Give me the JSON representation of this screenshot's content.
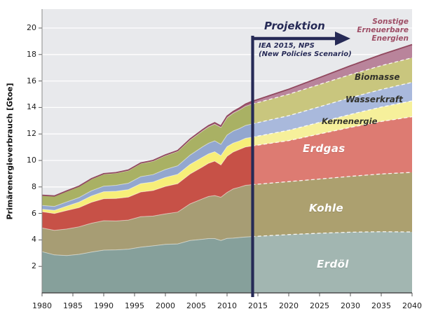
{
  "labels": {
    "y_axis_title": "Primärenergieverbrauch [Gtoe]",
    "projektion": "Projektion",
    "iea_line1": "IEA 2015, NPS",
    "iea_line2": "(New Policies Scenario)",
    "sonstige_l1": "Sonstige",
    "sonstige_l2": "Erneuerbare",
    "sonstige_l3": "Energien",
    "biomasse": "Biomasse",
    "wasserkraft": "Wasserkraft",
    "kernenergie": "Kernenergie",
    "erdgas": "Erdgas",
    "kohle": "Kohle",
    "erdoel": "Erdöl"
  },
  "colors": {
    "plot_bg": "#e8e9ec",
    "gridline": "#ffffff",
    "axis": "#5a5a5a",
    "divider_navy": "#262a56",
    "top_edge": "#91495f",
    "sonstige_label": "#9e4e66"
  },
  "axes": {
    "x_ticks": [
      1980,
      1985,
      1990,
      1995,
      2000,
      2005,
      2010,
      2015,
      2020,
      2025,
      2030,
      2035,
      2040
    ],
    "y_ticks": [
      2,
      4,
      6,
      8,
      10,
      12,
      14,
      16,
      18,
      20
    ]
  },
  "chart_data": {
    "type": "area",
    "stacked": true,
    "title": "",
    "xlabel": "",
    "ylabel": "Primärenergieverbrauch [Gtoe]",
    "unit": "Gtoe",
    "xlim": [
      1980,
      2040
    ],
    "ylim": [
      0,
      21.4
    ],
    "grid": "horizontal-white",
    "projection_start": 2014,
    "projection_note": "IEA 2015, NPS (New Policies Scenario)",
    "x": [
      1980,
      1982,
      1984,
      1986,
      1988,
      1990,
      1992,
      1994,
      1996,
      1998,
      2000,
      2002,
      2004,
      2006,
      2007,
      2008,
      2009,
      2010,
      2011,
      2012,
      2013,
      2014,
      2020,
      2025,
      2030,
      2035,
      2040
    ],
    "series": [
      {
        "name": "Erdöl",
        "color_hist": "#86a09b",
        "color_proj": "#a2b6b1",
        "values": [
          3.11,
          2.87,
          2.82,
          2.91,
          3.08,
          3.23,
          3.25,
          3.3,
          3.45,
          3.55,
          3.66,
          3.7,
          3.95,
          4.05,
          4.1,
          4.1,
          3.96,
          4.11,
          4.13,
          4.18,
          4.22,
          4.25,
          4.4,
          4.5,
          4.58,
          4.62,
          4.6
        ]
      },
      {
        "name": "Kohle",
        "color_hist": "#a79d74",
        "color_proj": "#aca06f",
        "values": [
          1.79,
          1.85,
          2.0,
          2.08,
          2.18,
          2.22,
          2.18,
          2.2,
          2.3,
          2.25,
          2.31,
          2.4,
          2.77,
          3.05,
          3.18,
          3.25,
          3.26,
          3.47,
          3.72,
          3.8,
          3.9,
          3.92,
          4.0,
          4.1,
          4.22,
          4.36,
          4.5
        ]
      },
      {
        "name": "Erdgas",
        "color_hist": "#c75147",
        "color_proj": "#dd7b72",
        "values": [
          1.23,
          1.27,
          1.4,
          1.45,
          1.58,
          1.66,
          1.7,
          1.74,
          1.87,
          1.93,
          2.07,
          2.15,
          2.26,
          2.41,
          2.51,
          2.6,
          2.44,
          2.74,
          2.79,
          2.85,
          2.9,
          2.92,
          3.1,
          3.4,
          3.7,
          3.96,
          4.2
        ]
      },
      {
        "name": "Kernenergie",
        "color_hist": "#f7ee79",
        "color_proj": "#f6f09b",
        "values": [
          0.19,
          0.24,
          0.33,
          0.41,
          0.48,
          0.53,
          0.54,
          0.56,
          0.63,
          0.64,
          0.68,
          0.7,
          0.72,
          0.73,
          0.71,
          0.71,
          0.7,
          0.72,
          0.67,
          0.64,
          0.65,
          0.66,
          0.78,
          0.88,
          0.98,
          1.09,
          1.2
        ]
      },
      {
        "name": "Wasserkraft",
        "color_hist": "#93a7cf",
        "color_proj": "#a9b9dc",
        "values": [
          0.28,
          0.3,
          0.32,
          0.35,
          0.39,
          0.42,
          0.45,
          0.48,
          0.53,
          0.56,
          0.6,
          0.65,
          0.7,
          0.78,
          0.8,
          0.82,
          0.85,
          0.88,
          0.91,
          0.94,
          0.97,
          1.0,
          1.1,
          1.18,
          1.26,
          1.33,
          1.4
        ]
      },
      {
        "name": "Biomasse",
        "color_hist": "#a9b164",
        "color_proj": "#c9c67e",
        "values": [
          0.75,
          0.77,
          0.8,
          0.83,
          0.87,
          0.9,
          0.92,
          0.95,
          0.98,
          1.01,
          1.04,
          1.08,
          1.14,
          1.2,
          1.23,
          1.26,
          1.28,
          1.31,
          1.35,
          1.4,
          1.45,
          1.5,
          1.62,
          1.68,
          1.74,
          1.8,
          1.85
        ]
      },
      {
        "name": "Sonstige Erneuerbare Energien",
        "color_hist": "#a2607a",
        "color_proj": "#b9849b",
        "values": [
          0.02,
          0.02,
          0.03,
          0.03,
          0.04,
          0.04,
          0.04,
          0.05,
          0.05,
          0.06,
          0.06,
          0.07,
          0.08,
          0.09,
          0.1,
          0.11,
          0.11,
          0.12,
          0.13,
          0.15,
          0.17,
          0.2,
          0.38,
          0.52,
          0.67,
          0.83,
          1.0
        ]
      }
    ]
  }
}
